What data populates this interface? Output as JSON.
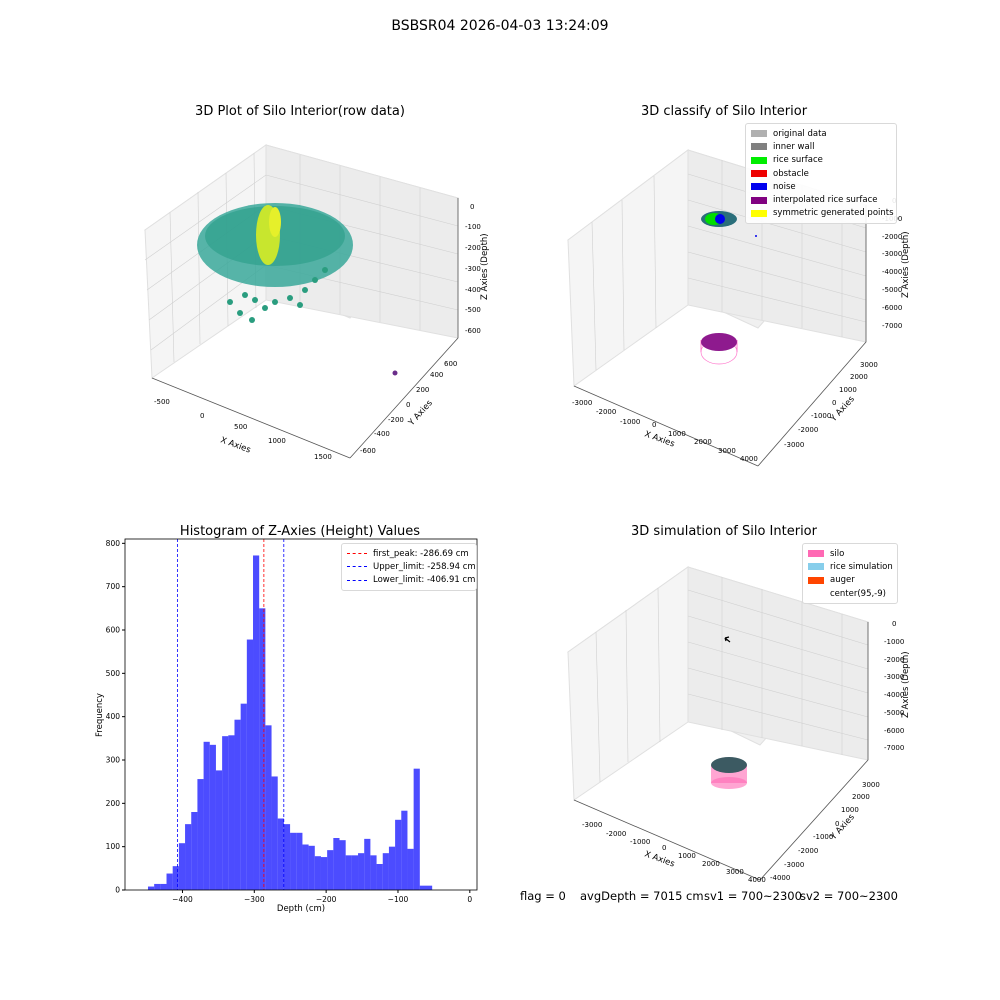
{
  "suptitle": "BSBSR04 2026-04-03 13:24:09",
  "panel_tl": {
    "title": "3D Plot of Silo Interior(row data)",
    "xlabel": "X Axies",
    "ylabel": "Y Axies",
    "zlabel": "Z Axies (Depth)",
    "xticks": [
      "-500",
      "0",
      "500",
      "1000",
      "1500"
    ],
    "yticks": [
      "-600",
      "-400",
      "-200",
      "0",
      "200",
      "400",
      "600"
    ],
    "zticks": [
      "0",
      "-100",
      "-200",
      "-300",
      "-400",
      "-500",
      "-600"
    ]
  },
  "panel_tr": {
    "title": "3D classify of Silo Interior",
    "xlabel": "X Axies",
    "ylabel": "Y Axies",
    "zlabel": "Z Axies (Depth)",
    "xticks": [
      "-3000",
      "-2000",
      "-1000",
      "0",
      "1000",
      "2000",
      "3000",
      "4000"
    ],
    "yticks": [
      "-3000",
      "-2000",
      "-1000",
      "0",
      "1000",
      "2000",
      "3000"
    ],
    "zticks": [
      "0",
      "-1000",
      "-2000",
      "-3000",
      "-4000",
      "-5000",
      "-6000",
      "-7000"
    ],
    "legend": [
      {
        "label": "original data",
        "color": "#b0b0b0"
      },
      {
        "label": "inner wall",
        "color": "#808080"
      },
      {
        "label": "rice surface",
        "color": "#00ee00"
      },
      {
        "label": "obstacle",
        "color": "#ee0000"
      },
      {
        "label": "noise",
        "color": "#0000ee"
      },
      {
        "label": "interpolated rice surface",
        "color": "#800080"
      },
      {
        "label": "symmetric generated points",
        "color": "#ffff00"
      }
    ]
  },
  "panel_br": {
    "title": "3D simulation of Silo Interior",
    "xlabel": "X Axies",
    "ylabel": "Y Axies",
    "zlabel": "Z Axies (Depth)",
    "xticks": [
      "-3000",
      "-2000",
      "-1000",
      "0",
      "1000",
      "2000",
      "3000",
      "4000"
    ],
    "yticks": [
      "-4000",
      "-3000",
      "-2000",
      "-1000",
      "0",
      "1000",
      "2000",
      "3000"
    ],
    "zticks": [
      "0",
      "-1000",
      "-2000",
      "-3000",
      "-4000",
      "-5000",
      "-6000",
      "-7000"
    ],
    "legend": [
      {
        "label": "silo",
        "color": "#ff69b4"
      },
      {
        "label": "rice simulation",
        "color": "#87ceeb"
      },
      {
        "label": "auger",
        "color": "#ff4500"
      },
      {
        "label": "center(95,-9)",
        "color": ""
      }
    ]
  },
  "status": {
    "flag": "flag = 0",
    "avg": "avgDepth = 7015 cm",
    "sv1": "sv1 = 700~2300",
    "sv2": "sv2 = 700~2300"
  },
  "chart_data": {
    "type": "bar",
    "title": "Histogram of Z-Axies (Height) Values",
    "xlabel": "Depth (cm)",
    "ylabel": "Frequency",
    "xlim": [
      -480,
      10
    ],
    "ylim": [
      0,
      810
    ],
    "bar_color": "#0000ff",
    "xticks": [
      -400,
      -300,
      -200,
      -100,
      0
    ],
    "yticks": [
      0,
      100,
      200,
      300,
      400,
      500,
      600,
      700,
      800
    ],
    "bin_width": 8.6,
    "bin_starts": [
      -448,
      -439.4,
      -430.8,
      -422.2,
      -413.6,
      -405,
      -396.4,
      -387.8,
      -379.2,
      -370.6,
      -362,
      -353.4,
      -344.8,
      -336.2,
      -327.6,
      -319,
      -310.4,
      -301.8,
      -293.2,
      -284.6,
      -276,
      -267.4,
      -258.8,
      -250.2,
      -241.6,
      -233,
      -224.4,
      -215.8,
      -207.2,
      -198.6,
      -190,
      -181.4,
      -172.8,
      -164.2,
      -155.6,
      -147,
      -138.4,
      -129.8,
      -121.2,
      -112.6,
      -104,
      -95.4,
      -86.8,
      -78.2,
      -69.6,
      -61,
      -52.4,
      -43.8,
      -35.2
    ],
    "values": [
      8,
      14,
      14,
      38,
      55,
      108,
      152,
      180,
      256,
      342,
      335,
      276,
      355,
      357,
      393,
      430,
      578,
      772,
      650,
      380,
      262,
      165,
      152,
      132,
      132,
      105,
      102,
      78,
      76,
      92,
      120,
      115,
      80,
      80,
      85,
      118,
      80,
      60,
      85,
      100,
      162,
      183,
      95,
      280,
      10,
      10,
      0,
      0,
      0
    ],
    "vlines": [
      {
        "label": "first_peak: -286.69 cm",
        "x": -286.69,
        "color": "#ff0000"
      },
      {
        "label": "Upper_limit: -258.94 cm",
        "x": -258.94,
        "color": "#0000ff"
      },
      {
        "label": "Lower_limit: -406.91 cm",
        "x": -406.91,
        "color": "#0000ff"
      }
    ]
  }
}
